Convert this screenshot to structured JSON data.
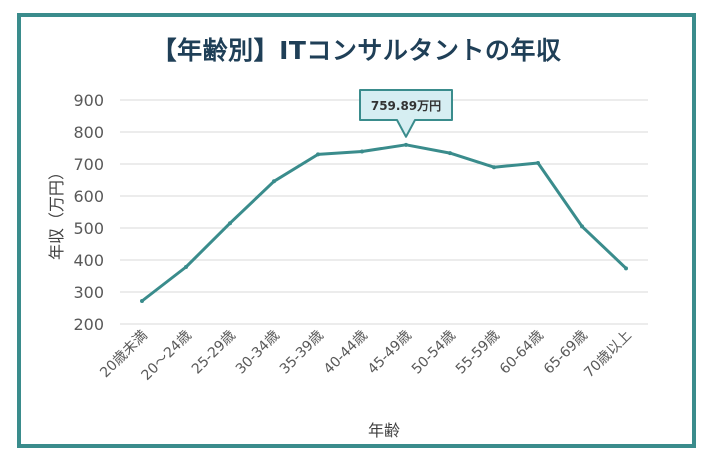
{
  "chart_data": {
    "type": "line",
    "title": "【年齢別】ITコンサルタントの年収",
    "xlabel": "年齢",
    "ylabel": "年収（万円）",
    "ylim": [
      200,
      900
    ],
    "yticks": [
      200,
      300,
      400,
      500,
      600,
      700,
      800,
      900
    ],
    "grid": true,
    "categories": [
      "20歳未満",
      "20～24歳",
      "25-29歳",
      "30-34歳",
      "35-39歳",
      "40-44歳",
      "45-49歳",
      "50-54歳",
      "55-59歳",
      "60-64歳",
      "65-69歳",
      "70歳以上"
    ],
    "series": [
      {
        "values": [
          272,
          378,
          515,
          646,
          730,
          739,
          759.89,
          734,
          690,
          703,
          505,
          374
        ]
      }
    ],
    "annotation": {
      "category": "45-49歳",
      "text": "759.89万円"
    },
    "colors": {
      "line": "#3a8c8c",
      "frame": "#3a8c8c",
      "title": "#1f3f57",
      "callout_fill": "#d6eef2",
      "callout_border": "#3a8c8c"
    }
  }
}
